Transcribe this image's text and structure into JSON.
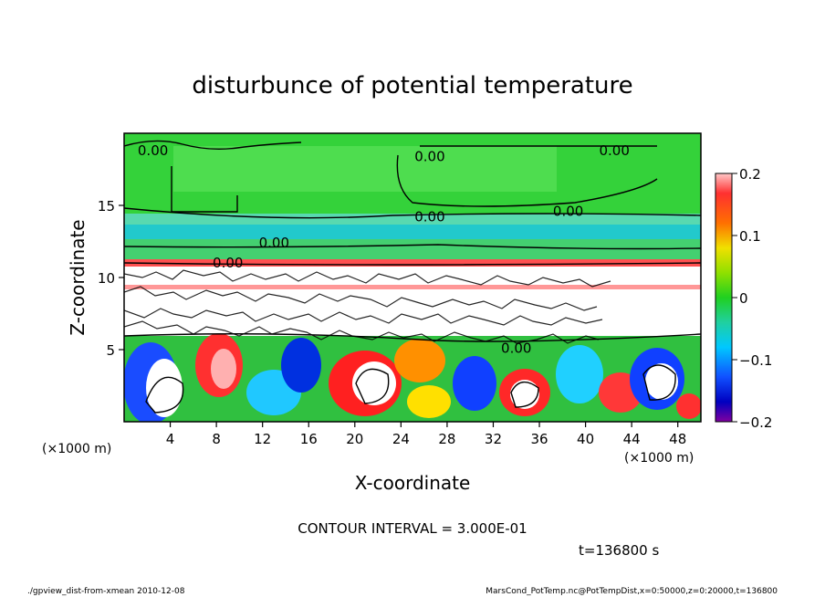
{
  "chart_data": {
    "type": "heatmap",
    "title": "disturbunce of potential temperature",
    "xlabel": "X-coordinate",
    "ylabel": "Z-coordinate",
    "x_unit": "(×1000 m)",
    "y_unit": "(×1000 m)",
    "xlim": [
      0,
      50
    ],
    "ylim": [
      0,
      20
    ],
    "x_ticks": [
      4,
      8,
      12,
      16,
      20,
      24,
      28,
      32,
      36,
      40,
      44,
      48
    ],
    "y_ticks": [
      5,
      10,
      15
    ],
    "colorbar": {
      "range": [
        -0.2,
        0.2
      ],
      "tick_labels": [
        "0.2",
        "0.1",
        "0",
        "−0.1",
        "−0.2"
      ],
      "tick_values": [
        0.2,
        0.1,
        0,
        -0.1,
        -0.2
      ]
    },
    "contour_labels": [
      {
        "text": "0.00",
        "x": 2.5,
        "z": 18.8
      },
      {
        "text": "0.00",
        "x": 26.5,
        "z": 18.4
      },
      {
        "text": "0.00",
        "x": 42.5,
        "z": 18.8
      },
      {
        "text": "0.00",
        "x": 26.5,
        "z": 14.2
      },
      {
        "text": "0.00",
        "x": 38.5,
        "z": 14.6
      },
      {
        "text": "0.00",
        "x": 13.0,
        "z": 12.4
      },
      {
        "text": "0.00",
        "x": 9.0,
        "z": 11.0
      },
      {
        "text": "0.00",
        "x": 34.0,
        "z": 5.1
      }
    ],
    "contour_interval_text": "CONTOUR INTERVAL = 3.000E-01",
    "time_text": "t=136800 s"
  },
  "footer": {
    "left": "./gpview_dist-from-xmean  2010-12-08",
    "right": "MarsCond_PotTemp.nc@PotTempDist,x=0:50000,z=0:20000,t=136800"
  }
}
